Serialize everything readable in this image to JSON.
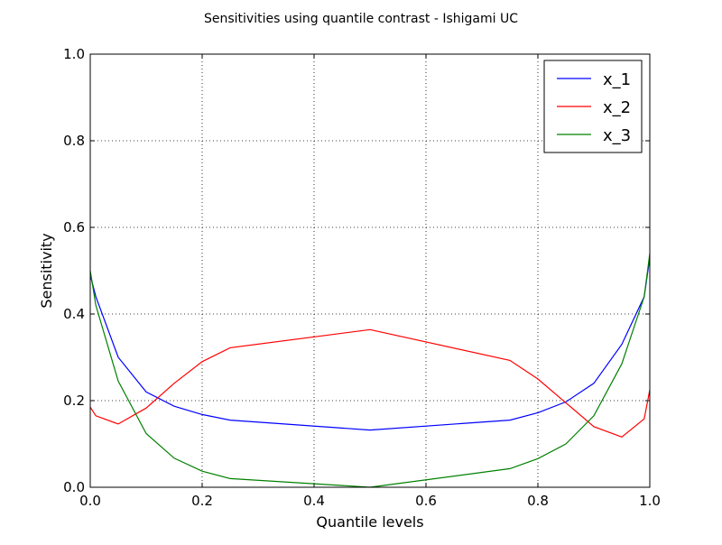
{
  "chart_data": {
    "type": "line",
    "title": "Sensitivities using quantile contrast - Ishigami UC",
    "xlabel": "Quantile levels",
    "ylabel": "Sensitivity",
    "xlim": [
      0.0,
      1.0
    ],
    "ylim": [
      0.0,
      1.0
    ],
    "xticks": [
      "0.0",
      "0.2",
      "0.4",
      "0.6",
      "0.8",
      "1.0"
    ],
    "yticks": [
      "0.0",
      "0.2",
      "0.4",
      "0.6",
      "0.8",
      "1.0"
    ],
    "grid": true,
    "legend_position": "top-right",
    "x": [
      0.0,
      0.01,
      0.05,
      0.1,
      0.15,
      0.2,
      0.25,
      0.5,
      0.75,
      0.8,
      0.85,
      0.9,
      0.95,
      0.99,
      1.0
    ],
    "series": [
      {
        "name": "x_1",
        "color": "#0000ff",
        "values": [
          0.49,
          0.44,
          0.3,
          0.22,
          0.187,
          0.168,
          0.155,
          0.132,
          0.155,
          0.172,
          0.197,
          0.24,
          0.33,
          0.44,
          0.53
        ]
      },
      {
        "name": "x_2",
        "color": "#ff0000",
        "values": [
          0.185,
          0.165,
          0.146,
          0.183,
          0.24,
          0.29,
          0.322,
          0.364,
          0.293,
          0.25,
          0.195,
          0.14,
          0.116,
          0.158,
          0.225
        ]
      },
      {
        "name": "x_3",
        "color": "#008000",
        "values": [
          0.5,
          0.42,
          0.245,
          0.124,
          0.067,
          0.037,
          0.02,
          0.0,
          0.043,
          0.066,
          0.1,
          0.165,
          0.285,
          0.44,
          0.54
        ]
      }
    ]
  }
}
